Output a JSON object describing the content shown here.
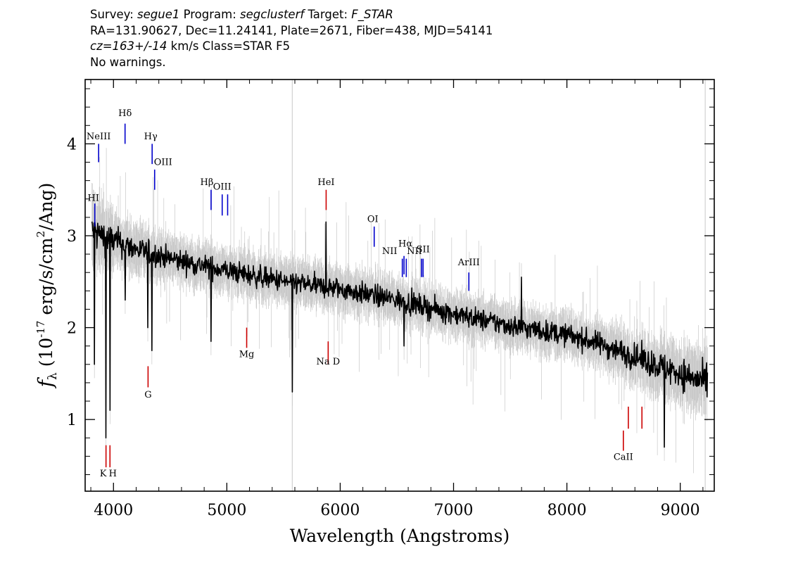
{
  "header": {
    "survey_label": "Survey:",
    "survey_value": "segue1",
    "program_label": "Program:",
    "program_value": "segclusterf",
    "target_label": "Target:",
    "target_value": "F_STAR",
    "line2": "RA=131.90627, Dec=11.24141, Plate=2671, Fiber=438, MJD=54141",
    "cz_value": "cz=163+/-14",
    "cz_rest": "km/s Class=STAR F5",
    "line4": "No warnings."
  },
  "chart_data": {
    "type": "line",
    "title": "",
    "xlabel": "Wavelength (Angstroms)",
    "ylabel_html": "f_λ (10^-17 erg/s/cm^2/Ang)",
    "xlim": [
      3750,
      9300
    ],
    "ylim": [
      0.22,
      4.7
    ],
    "xticks": [
      4000,
      5000,
      6000,
      7000,
      8000,
      9000
    ],
    "xtick_labels": [
      "4000",
      "5000",
      "6000",
      "7000",
      "8000",
      "9000"
    ],
    "yticks": [
      1,
      2,
      3,
      4
    ],
    "ytick_labels": [
      "1",
      "2",
      "3",
      "4"
    ],
    "grid": false,
    "series": [
      {
        "role": "flux",
        "color": "#000000",
        "continuum_x": [
          3800,
          3900,
          4000,
          4200,
          4500,
          5000,
          5500,
          6000,
          6500,
          7000,
          7500,
          8000,
          8300,
          8600,
          9000,
          9220
        ],
        "continuum_y": [
          3.05,
          3.0,
          2.95,
          2.85,
          2.75,
          2.62,
          2.5,
          2.42,
          2.3,
          2.15,
          2.02,
          1.92,
          1.82,
          1.68,
          1.5,
          1.4
        ]
      },
      {
        "role": "error_band",
        "color": "#c8c8c8"
      }
    ],
    "spike_features": [
      {
        "x": 3830,
        "y": 1.6
      },
      {
        "x": 3933,
        "y": 0.8
      },
      {
        "x": 3968,
        "y": 1.1
      },
      {
        "x": 4102,
        "y": 2.3
      },
      {
        "x": 4303,
        "y": 2.0
      },
      {
        "x": 4340,
        "y": 1.75
      },
      {
        "x": 4861,
        "y": 1.85
      },
      {
        "x": 5577,
        "y": 1.3
      },
      {
        "x": 5875,
        "y": 3.15
      },
      {
        "x": 6563,
        "y": 1.8
      },
      {
        "x": 7600,
        "y": 2.55
      },
      {
        "x": 8860,
        "y": 0.7
      }
    ],
    "emission_lines": [
      {
        "label": "HI",
        "x": 3835,
        "color": "#0000cc",
        "y_top": 3.35,
        "y_bot": 3.1,
        "label_y": 3.38,
        "dx": -2
      },
      {
        "label": "NeIII",
        "x": 3869,
        "color": "#0000cc",
        "y_top": 4.0,
        "y_bot": 3.8,
        "label_y": 4.05,
        "dx": 0
      },
      {
        "label": "Hδ",
        "x": 4102,
        "color": "#0000cc",
        "y_top": 4.22,
        "y_bot": 4.0,
        "label_y": 4.3,
        "dx": 0
      },
      {
        "label": "Hγ",
        "x": 4341,
        "color": "#0000cc",
        "y_top": 4.0,
        "y_bot": 3.78,
        "label_y": 4.05,
        "dx": -2
      },
      {
        "label": "OIII",
        "x": 4363,
        "color": "#0000cc",
        "y_top": 3.72,
        "y_bot": 3.5,
        "label_y": 3.77,
        "dx": 12
      },
      {
        "label": "Hβ",
        "x": 4861,
        "color": "#0000cc",
        "y_top": 3.5,
        "y_bot": 3.28,
        "label_y": 3.55,
        "dx": -6
      },
      {
        "label": "OIII",
        "x": 4959,
        "color": "#0000cc",
        "y_top": 3.45,
        "y_bot": 3.22,
        "label_y": 3.5,
        "dx": 0
      },
      {
        "label": "",
        "x": 5007,
        "color": "#0000cc",
        "y_top": 3.45,
        "y_bot": 3.22,
        "label_y": 3.5,
        "dx": 0
      },
      {
        "label": "HeI",
        "x": 5876,
        "color": "#cc0000",
        "y_top": 3.5,
        "y_bot": 3.28,
        "label_y": 3.55,
        "dx": 0
      },
      {
        "label": "OI",
        "x": 6300,
        "color": "#0000cc",
        "y_top": 3.1,
        "y_bot": 2.88,
        "label_y": 3.15,
        "dx": -2
      },
      {
        "label": "NII",
        "x": 6548,
        "color": "#0000cc",
        "y_top": 2.75,
        "y_bot": 2.55,
        "label_y": 2.8,
        "dx": -18
      },
      {
        "label": "Hα",
        "x": 6563,
        "color": "#0000cc",
        "y_top": 2.78,
        "y_bot": 2.58,
        "label_y": 2.88,
        "dx": 2
      },
      {
        "label": "",
        "x": 6583,
        "color": "#0000cc",
        "y_top": 2.75,
        "y_bot": 2.55,
        "label_y": 2.8,
        "dx": 0
      },
      {
        "label": "NII",
        "x": 6717,
        "color": "#0000cc",
        "y_top": 2.75,
        "y_bot": 2.55,
        "label_y": 2.8,
        "dx": -10
      },
      {
        "label": "SII",
        "x": 6731,
        "color": "#0000cc",
        "y_top": 2.75,
        "y_bot": 2.55,
        "label_y": 2.82,
        "dx": 0
      },
      {
        "label": "ArIII",
        "x": 7135,
        "color": "#0000cc",
        "y_top": 2.6,
        "y_bot": 2.4,
        "label_y": 2.68,
        "dx": 0
      }
    ],
    "absorption_lines": [
      {
        "label": "K",
        "x": 3934,
        "color": "#cc0000",
        "y_top": 0.72,
        "y_bot": 0.48,
        "label_y": 0.38,
        "dx": -4
      },
      {
        "label": "H",
        "x": 3969,
        "color": "#cc0000",
        "y_top": 0.72,
        "y_bot": 0.48,
        "label_y": 0.38,
        "dx": 4
      },
      {
        "label": "G",
        "x": 4305,
        "color": "#cc0000",
        "y_top": 1.58,
        "y_bot": 1.35,
        "label_y": 1.24,
        "dx": 0
      },
      {
        "label": "Mg",
        "x": 5175,
        "color": "#cc0000",
        "y_top": 2.0,
        "y_bot": 1.78,
        "label_y": 1.68,
        "dx": 0
      },
      {
        "label": "Na D",
        "x": 5894,
        "color": "#cc0000",
        "y_top": 1.85,
        "y_bot": 1.6,
        "label_y": 1.6,
        "dx": 0
      },
      {
        "label": "CaII",
        "x": 8498,
        "color": "#cc0000",
        "y_top": 0.88,
        "y_bot": 0.66,
        "label_y": 0.56,
        "dx": 0
      },
      {
        "label": "",
        "x": 8542,
        "color": "#cc0000",
        "y_top": 1.14,
        "y_bot": 0.9,
        "label_y": 0.6,
        "dx": 0
      },
      {
        "label": "",
        "x": 8662,
        "color": "#cc0000",
        "y_top": 1.14,
        "y_bot": 0.9,
        "label_y": 0.6,
        "dx": 0
      }
    ]
  }
}
